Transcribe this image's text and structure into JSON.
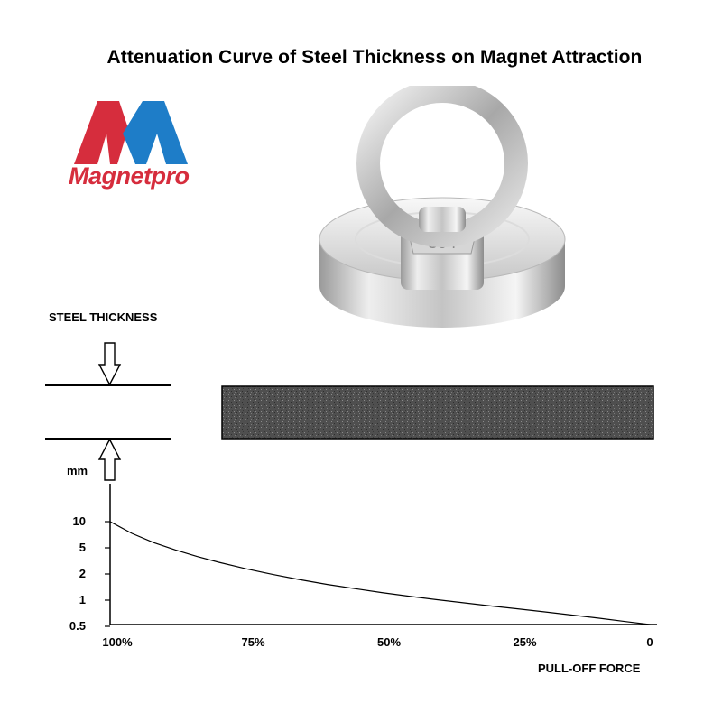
{
  "title": "Attenuation Curve of Steel Thickness on Magnet Attraction",
  "logo": {
    "text": "Magnetpro",
    "colors": {
      "red": "#d62d3d",
      "blue": "#1e7dc8"
    }
  },
  "product_image": {
    "icon": "eyebolt-pot-magnet-image",
    "engraving": "304"
  },
  "steel_label": "STEEL THICKNESS",
  "chart_data": {
    "type": "line",
    "title": "Attenuation Curve of Steel Thickness on Magnet Attraction",
    "xlabel": "PULL-OFF FORCE",
    "ylabel": "mm",
    "x_ticks": [
      "100%",
      "75%",
      "50%",
      "25%",
      "0"
    ],
    "y_ticks": [
      "10",
      "5",
      "2",
      "1",
      "0.5"
    ],
    "x_reversed": true,
    "y_scale": "nonlinear (tick-indexed)",
    "series": [
      {
        "x": [
          100,
          96,
          92,
          88,
          84,
          80,
          75,
          70,
          65,
          60,
          55,
          50,
          45,
          40,
          35,
          30,
          25,
          20,
          15,
          10,
          5,
          0
        ],
        "y_level": [
          4.0,
          3.55,
          3.2,
          2.92,
          2.67,
          2.45,
          2.2,
          1.98,
          1.78,
          1.6,
          1.44,
          1.29,
          1.15,
          1.02,
          0.9,
          0.78,
          0.67,
          0.55,
          0.43,
          0.31,
          0.18,
          0.05
        ]
      }
    ],
    "grid": false,
    "legend": "none"
  }
}
